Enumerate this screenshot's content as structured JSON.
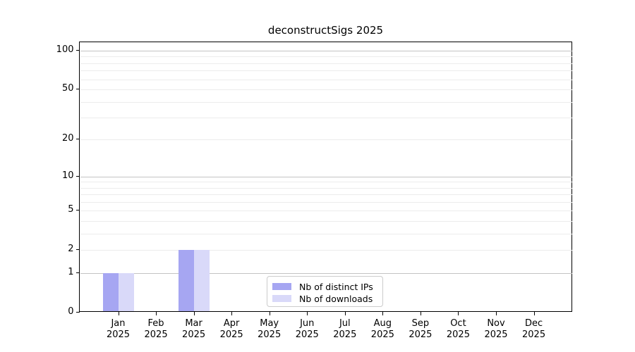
{
  "figure": {
    "title": "deconstructSigs 2025"
  },
  "chart_data": {
    "type": "bar",
    "title": "deconstructSigs 2025",
    "y_scale": "log1p",
    "ylim": [
      0,
      100
    ],
    "yticks": [
      0,
      1,
      2,
      5,
      10,
      20,
      50,
      100
    ],
    "major_gridlines": [
      1,
      10,
      100
    ],
    "minor_gridlines": [
      2,
      3,
      4,
      5,
      6,
      7,
      8,
      9,
      20,
      30,
      40,
      50,
      60,
      70,
      80,
      90
    ],
    "grid": true,
    "categories": [
      {
        "month": "Jan",
        "year": "2025"
      },
      {
        "month": "Feb",
        "year": "2025"
      },
      {
        "month": "Mar",
        "year": "2025"
      },
      {
        "month": "Apr",
        "year": "2025"
      },
      {
        "month": "May",
        "year": "2025"
      },
      {
        "month": "Jun",
        "year": "2025"
      },
      {
        "month": "Jul",
        "year": "2025"
      },
      {
        "month": "Aug",
        "year": "2025"
      },
      {
        "month": "Sep",
        "year": "2025"
      },
      {
        "month": "Oct",
        "year": "2025"
      },
      {
        "month": "Nov",
        "year": "2025"
      },
      {
        "month": "Dec",
        "year": "2025"
      }
    ],
    "series": [
      {
        "name": "Nb of distinct IPs",
        "color": "#a6a6f2",
        "values": [
          1,
          0,
          2,
          0,
          0,
          0,
          0,
          0,
          0,
          0,
          0,
          0
        ]
      },
      {
        "name": "Nb of downloads",
        "color": "#d9d9f9",
        "values": [
          1,
          0,
          2,
          0,
          0,
          0,
          0,
          0,
          0,
          0,
          0,
          0
        ]
      }
    ],
    "legend": {
      "position": "lower center",
      "entries": [
        "Nb of distinct IPs",
        "Nb of downloads"
      ]
    }
  },
  "colors": {
    "background": "#ffffff",
    "axis": "#000000",
    "major_grid": "#c3c3c3",
    "minor_grid": "#ececec",
    "legend_border": "#cccccc",
    "text": "#000000"
  }
}
